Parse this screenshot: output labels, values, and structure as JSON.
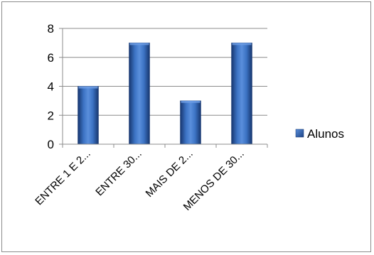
{
  "chart_data": {
    "type": "bar",
    "categories": [
      "ENTRE 1  E 2...",
      "ENTRE 30...",
      "MAIS DE 2...",
      "MENOS DE 30..."
    ],
    "series": [
      {
        "name": "Alunos",
        "values": [
          4,
          7,
          3,
          7
        ],
        "color": "#2e63b0"
      }
    ],
    "ylim": [
      0,
      8
    ],
    "yticks": [
      0,
      2,
      4,
      6,
      8
    ],
    "grid": true,
    "legend": "right",
    "title": "",
    "xlabel": "",
    "ylabel": ""
  }
}
